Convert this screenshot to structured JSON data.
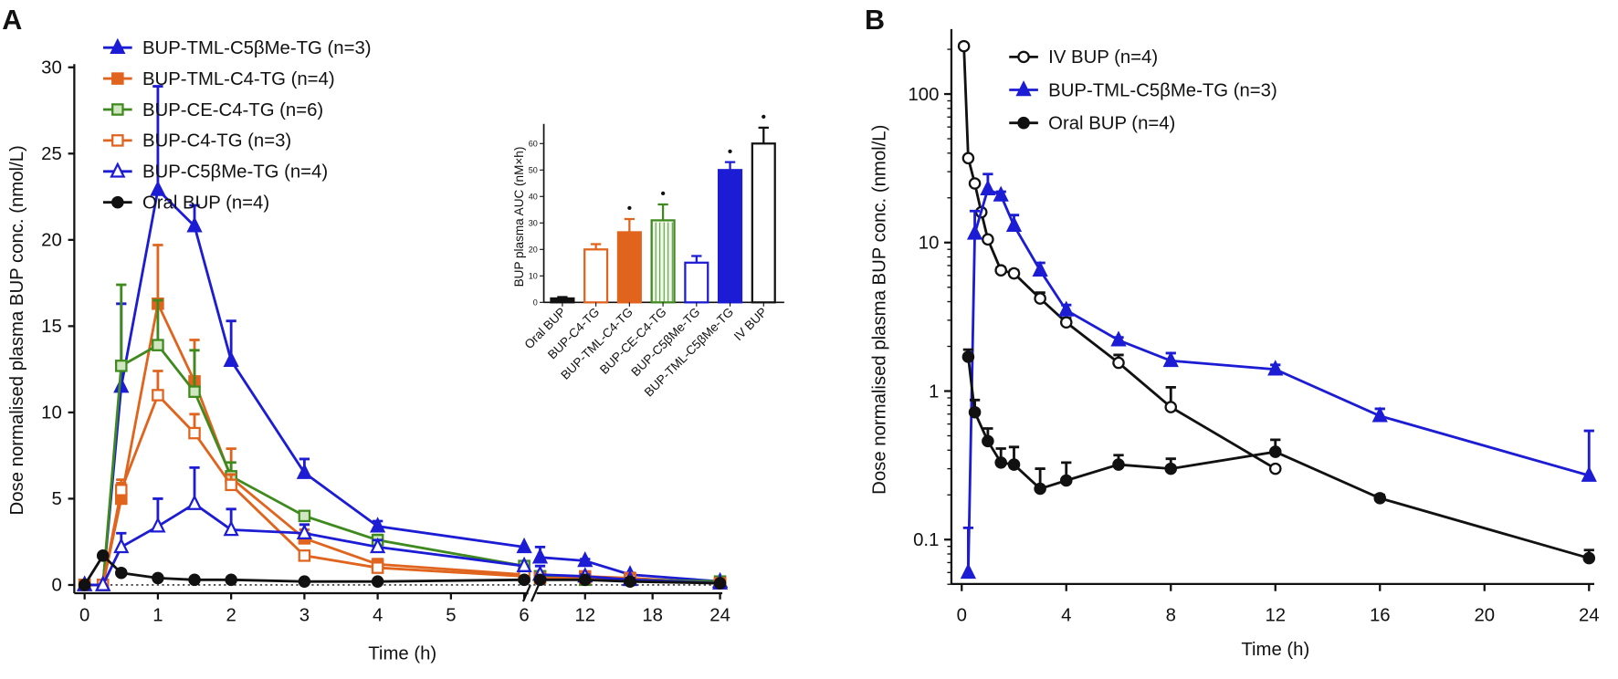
{
  "chart_data": [
    {
      "panel_label": "A",
      "type": "line",
      "xlabel": "Time (h)",
      "ylabel": "Dose normalised plasma BUP conc. (nmol/L)",
      "ylim": [
        0,
        30
      ],
      "yticks": [
        0,
        5,
        10,
        15,
        20,
        25,
        30
      ],
      "xticks": [
        "0",
        "1",
        "2",
        "3",
        "4",
        "5",
        "6",
        "12",
        "18",
        "24"
      ],
      "x_axis_break": [
        6,
        8
      ],
      "legend_placement": "top-left",
      "x": [
        0,
        0.25,
        0.5,
        1,
        1.5,
        2,
        3,
        4,
        6,
        8,
        12,
        16,
        24
      ],
      "series": [
        {
          "name": "BUP-TML-C5βMe-TG (n=3)",
          "color": "#1c1cd4",
          "marker": "triangle-filled",
          "values": [
            0,
            0,
            11.5,
            22.9,
            20.8,
            13.0,
            6.5,
            3.4,
            2.2,
            1.6,
            1.4,
            0.6,
            0.2
          ],
          "errors": [
            0,
            0,
            4.8,
            6.0,
            1.2,
            2.3,
            0.8,
            0.3,
            0,
            0.6,
            0.1,
            0.1,
            0.1
          ]
        },
        {
          "name": "BUP-TML-C4-TG (n=4)",
          "color": "#e0641e",
          "marker": "square-filled",
          "values": [
            0,
            0,
            5.0,
            16.3,
            11.8,
            6.2,
            2.7,
            1.2,
            0.6,
            0.5,
            0.5,
            0.4,
            0.1
          ],
          "errors": [
            0,
            0,
            0.9,
            3.4,
            2.4,
            1.7,
            0.5,
            0.3,
            0,
            0.1,
            0.1,
            0.1,
            0.1
          ]
        },
        {
          "name": "BUP-CE-C4-TG (n=6)",
          "color": "#3f8a1f",
          "marker": "square-hatched",
          "values": [
            0,
            0,
            12.7,
            13.9,
            11.2,
            6.3,
            4.0,
            2.6,
            1.1,
            0.5,
            0.3,
            0.3,
            0.2
          ],
          "errors": [
            0,
            0,
            4.7,
            2.6,
            2.4,
            0.8,
            0.2,
            0.3,
            0,
            0.1,
            0.1,
            0.1,
            0.1
          ]
        },
        {
          "name": "BUP-C4-TG (n=3)",
          "color": "#e0641e",
          "marker": "square-open",
          "values": [
            0,
            0,
            5.5,
            11.0,
            8.8,
            5.8,
            1.7,
            1.0,
            0.5,
            0.4,
            0.4,
            0.3,
            0.1
          ],
          "errors": [
            0,
            0,
            0.6,
            1.4,
            1.1,
            0.6,
            0.2,
            0.2,
            0,
            0.1,
            0.1,
            0.1,
            0.1
          ]
        },
        {
          "name": "BUP-C5βMe-TG (n=4)",
          "color": "#1c1cd4",
          "marker": "triangle-open",
          "values": [
            0,
            0,
            2.2,
            3.4,
            4.7,
            3.2,
            3.0,
            2.2,
            1.1,
            0.6,
            0.5,
            0.3,
            0.1
          ],
          "errors": [
            0,
            0,
            0.8,
            1.6,
            2.1,
            1.2,
            0.5,
            0.4,
            0,
            0.5,
            0.1,
            0.1,
            0.1
          ]
        },
        {
          "name": "Oral BUP (n=4)",
          "color": "#111111",
          "marker": "circle-filled",
          "values": [
            0,
            1.7,
            0.7,
            0.4,
            0.3,
            0.3,
            0.2,
            0.2,
            0.3,
            0.3,
            0.3,
            0.2,
            0.1
          ],
          "errors": [
            0,
            0,
            0,
            0,
            0,
            0,
            0,
            0,
            0,
            0,
            0,
            0,
            0
          ]
        }
      ],
      "inset": {
        "type": "bar",
        "ylabel": "BUP plasma AUC (nM×h)",
        "ylim": [
          0,
          65
        ],
        "yticks": [
          0,
          10,
          20,
          30,
          40,
          50,
          60
        ],
        "categories": [
          "Oral BUP",
          "BUP-C4-TG",
          "BUP-TML-C4-TG",
          "BUP-CE-C4-TG",
          "BUP-C5βMe-TG",
          "BUP-TML-C5βMe-TG",
          "IV BUP"
        ],
        "values": [
          1.5,
          20,
          26.5,
          31,
          15,
          50,
          60
        ],
        "errors": [
          0.5,
          2,
          5,
          6,
          2.5,
          3,
          6
        ],
        "significant": [
          false,
          false,
          true,
          true,
          false,
          true,
          true
        ],
        "significance_mark": "•",
        "colors": [
          "#111111",
          "#e0641e",
          "#e0641e",
          "#3f8a1f",
          "#1c1cd4",
          "#1c1cd4",
          "#111111"
        ],
        "fills": [
          "filled",
          "open",
          "filled",
          "hatched",
          "open",
          "filled",
          "open"
        ]
      }
    },
    {
      "panel_label": "B",
      "type": "line",
      "xlabel": "Time (h)",
      "ylabel": "Dose normalised plasma BUP conc. (nmol/L)",
      "yscale": "log",
      "ylim": [
        0.05,
        220
      ],
      "yticks": [
        0.1,
        1,
        10,
        100
      ],
      "ytick_labels": [
        "0.1",
        "1",
        "10",
        "100"
      ],
      "xlim": [
        0,
        24
      ],
      "xticks": [
        0,
        4,
        8,
        12,
        16,
        20,
        24
      ],
      "legend_placement": "top-left",
      "series": [
        {
          "name": "IV BUP (n=4)",
          "color": "#111111",
          "marker": "circle-open",
          "x": [
            0.083,
            0.25,
            0.5,
            0.75,
            1,
            1.5,
            2,
            3,
            4,
            6,
            8,
            12
          ],
          "values": [
            210,
            37,
            25,
            16,
            10.5,
            6.5,
            6.2,
            4.2,
            2.9,
            1.55,
            0.78,
            0.3
          ],
          "errors": [
            0,
            0,
            0,
            0,
            0,
            0.3,
            0.3,
            0.4,
            0.2,
            0.2,
            0.28,
            0
          ]
        },
        {
          "name": "BUP-TML-C5βMe-TG (n=3)",
          "color": "#1c1cd4",
          "marker": "triangle-filled",
          "x": [
            0.25,
            0.5,
            1,
            1.5,
            2,
            3,
            4,
            6,
            8,
            12,
            16,
            24
          ],
          "values": [
            0.06,
            11.5,
            22.9,
            20.8,
            13.0,
            6.5,
            3.5,
            2.2,
            1.6,
            1.4,
            0.68,
            0.27
          ],
          "errors": [
            0.06,
            4.8,
            6.0,
            1.2,
            2.3,
            0.8,
            0.3,
            0.1,
            0.2,
            0.1,
            0.08,
            0.27
          ]
        },
        {
          "name": "Oral BUP (n=4)",
          "color": "#111111",
          "marker": "circle-filled",
          "x": [
            0.25,
            0.5,
            1,
            1.5,
            2,
            3,
            4,
            6,
            8,
            12,
            16,
            24
          ],
          "values": [
            1.7,
            0.72,
            0.46,
            0.33,
            0.32,
            0.22,
            0.25,
            0.32,
            0.3,
            0.39,
            0.19,
            0.075
          ],
          "errors": [
            0.2,
            0.15,
            0.1,
            0.08,
            0.1,
            0.08,
            0.08,
            0.05,
            0.05,
            0.08,
            0.01,
            0.01
          ]
        }
      ]
    }
  ]
}
